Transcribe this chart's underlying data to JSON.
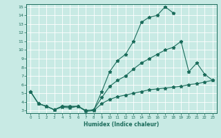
{
  "xlabel": "Humidex (Indice chaleur)",
  "xlim": [
    -0.5,
    23.5
  ],
  "ylim": [
    2.7,
    15.3
  ],
  "xticks": [
    0,
    1,
    2,
    3,
    4,
    5,
    6,
    7,
    8,
    9,
    10,
    11,
    12,
    13,
    14,
    15,
    16,
    17,
    18,
    19,
    20,
    21,
    22,
    23
  ],
  "yticks": [
    3,
    4,
    5,
    6,
    7,
    8,
    9,
    10,
    11,
    12,
    13,
    14,
    15
  ],
  "bg_color": "#c8eae4",
  "line_color": "#1a6b5a",
  "line1_x": [
    0,
    1,
    2,
    3,
    4,
    5,
    6,
    7,
    8,
    9,
    10,
    11,
    12,
    13,
    14,
    15,
    16,
    17,
    18
  ],
  "line1_y": [
    5.2,
    3.8,
    3.5,
    3.1,
    3.4,
    3.3,
    3.5,
    3.0,
    3.1,
    5.2,
    7.5,
    8.8,
    9.5,
    11.0,
    13.2,
    13.8,
    14.0,
    15.0,
    14.3
  ],
  "line2_x": [
    0,
    1,
    2,
    3,
    4,
    5,
    6,
    7,
    8,
    9,
    10,
    11,
    12,
    13,
    14,
    15,
    16,
    17,
    18,
    19,
    20,
    21,
    22,
    23
  ],
  "line2_y": [
    5.2,
    3.8,
    3.5,
    3.1,
    3.5,
    3.4,
    3.5,
    2.9,
    3.0,
    3.8,
    4.3,
    4.6,
    4.8,
    5.0,
    5.2,
    5.4,
    5.5,
    5.6,
    5.7,
    5.8,
    6.0,
    6.1,
    6.3,
    6.5
  ],
  "line3_x": [
    0,
    1,
    2,
    3,
    4,
    5,
    6,
    7,
    8,
    9,
    10,
    11,
    12,
    13,
    14,
    15,
    16,
    17,
    18,
    19,
    20,
    21,
    22,
    23
  ],
  "line3_y": [
    5.2,
    3.8,
    3.5,
    3.1,
    3.5,
    3.5,
    3.5,
    3.0,
    3.1,
    4.5,
    5.8,
    6.5,
    7.0,
    7.8,
    8.5,
    9.0,
    9.5,
    10.0,
    10.3,
    11.0,
    7.5,
    8.5,
    7.2,
    6.5
  ]
}
